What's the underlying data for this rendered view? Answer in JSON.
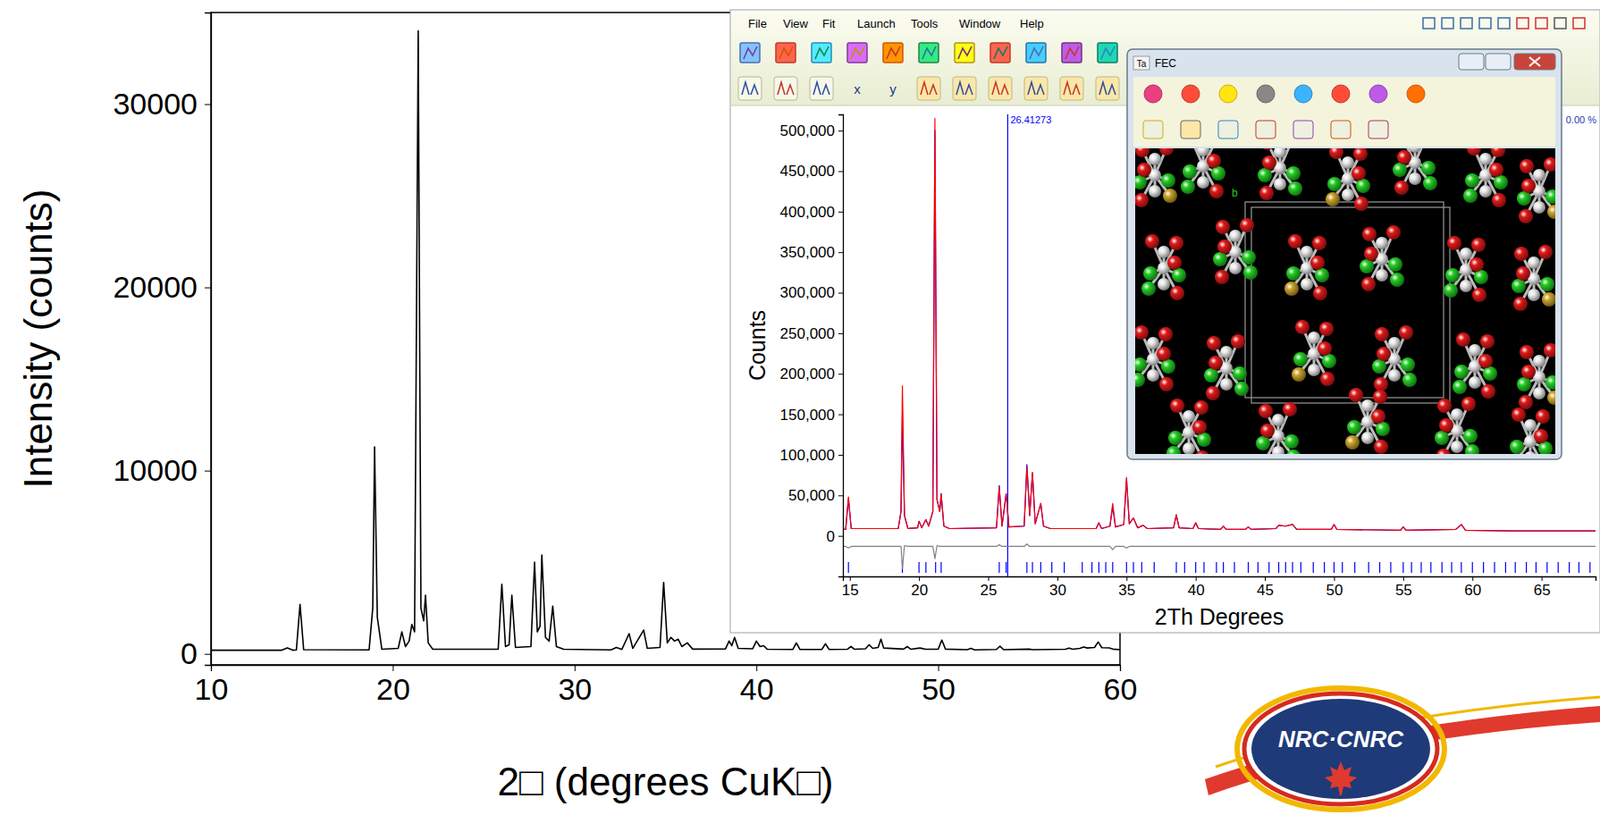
{
  "chart_data": [
    {
      "type": "line",
      "xlabel": "2□ (degrees CuK□)",
      "ylabel": "Intensity (counts)",
      "color": "#000000",
      "grid": false,
      "xlim": [
        10,
        60
      ],
      "ylim": [
        -600,
        35000
      ],
      "xticks": [
        10,
        20,
        30,
        40,
        50,
        60
      ],
      "yticks": [
        0,
        10000,
        20000,
        30000
      ],
      "x": [
        10,
        13.9,
        14.2,
        14.5,
        14.7,
        14.9,
        15.1,
        18.7,
        18.9,
        19.0,
        19.15,
        19.4,
        20.3,
        20.5,
        20.7,
        20.9,
        21.05,
        21.2,
        21.4,
        21.55,
        21.7,
        21.8,
        21.95,
        22.2,
        25.8,
        26.0,
        26.2,
        26.4,
        26.55,
        26.75,
        27.6,
        27.8,
        27.95,
        28.1,
        28.2,
        28.4,
        28.6,
        28.8,
        29.0,
        29.4,
        32.0,
        32.3,
        32.6,
        33.0,
        33.2,
        33.8,
        34.0,
        34.7,
        34.9,
        35.1,
        35.3,
        35.5,
        35.7,
        35.9,
        36.2,
        36.5,
        38.3,
        38.5,
        38.65,
        38.8,
        39.0,
        39.8,
        40.0,
        40.2,
        40.4,
        40.6,
        42.0,
        42.2,
        42.4,
        43.6,
        43.8,
        44.0,
        45.0,
        45.2,
        45.4,
        46.0,
        46.2,
        46.4,
        46.7,
        46.85,
        47.0,
        48.1,
        48.3,
        48.5,
        49.0,
        49.3,
        50.0,
        50.2,
        50.4,
        51.6,
        51.8,
        52.0,
        53.2,
        53.4,
        53.6,
        55.0,
        55.2,
        57.0,
        57.2,
        57.4,
        57.8,
        58.0,
        58.2,
        58.6,
        58.8,
        59.0,
        59.4,
        59.6,
        60
      ],
      "values": [
        200,
        200,
        330,
        200,
        220,
        2700,
        230,
        220,
        2500,
        11300,
        2000,
        250,
        300,
        1200,
        400,
        700,
        1600,
        1200,
        34000,
        2500,
        1800,
        3200,
        600,
        250,
        260,
        3800,
        400,
        500,
        3200,
        350,
        400,
        5000,
        1200,
        1500,
        5400,
        900,
        700,
        2600,
        400,
        250,
        220,
        350,
        240,
        1100,
        300,
        1300,
        300,
        350,
        3900,
        600,
        900,
        700,
        800,
        400,
        600,
        260,
        270,
        700,
        450,
        900,
        300,
        280,
        700,
        400,
        450,
        250,
        240,
        600,
        240,
        240,
        550,
        240,
        250,
        400,
        250,
        280,
        500,
        300,
        350,
        800,
        320,
        260,
        400,
        250,
        320,
        250,
        260,
        750,
        260,
        230,
        300,
        220,
        240,
        420,
        230,
        260,
        230,
        250,
        320,
        250,
        300,
        380,
        320,
        350,
        650,
        340,
        330,
        260,
        230
      ]
    },
    {
      "type": "line",
      "xlabel": "2Th Degrees",
      "ylabel": "Counts",
      "grid": false,
      "xlim": [
        14.5,
        68.9
      ],
      "ylim": [
        -50000,
        520000
      ],
      "xticks": [
        15,
        20,
        25,
        30,
        35,
        40,
        45,
        50,
        55,
        60,
        65
      ],
      "yticks": [
        0,
        {
          "value": 50000,
          "label": "50,000"
        },
        {
          "value": 100000,
          "label": "100,000"
        },
        {
          "value": 150000,
          "label": "150,000"
        },
        {
          "value": 200000,
          "label": "200,000"
        },
        {
          "value": 250000,
          "label": "250,000"
        },
        {
          "value": 300000,
          "label": "300,000"
        },
        {
          "value": 350000,
          "label": "350,000"
        },
        {
          "value": 400000,
          "label": "400,000"
        },
        {
          "value": 450000,
          "label": "450,000"
        },
        {
          "value": 500000,
          "label": "500,000"
        }
      ],
      "x": [
        14.5,
        14.7,
        14.9,
        15.1,
        18.5,
        18.7,
        18.8,
        18.95,
        19.2,
        19.9,
        20.0,
        20.2,
        20.5,
        20.7,
        21.0,
        21.15,
        21.3,
        21.5,
        21.6,
        21.8,
        22.2,
        25.6,
        25.8,
        26.0,
        26.3,
        26.5,
        27.6,
        27.8,
        28.0,
        28.2,
        28.4,
        28.8,
        29.0,
        29.5,
        32.8,
        33.0,
        33.2,
        33.8,
        34.0,
        34.2,
        34.8,
        35.0,
        35.2,
        35.5,
        35.8,
        36.2,
        36.5,
        38.4,
        38.6,
        38.8,
        39.8,
        40.0,
        40.2,
        41.8,
        42.0,
        42.2,
        43.6,
        43.8,
        44.0,
        45.8,
        46.0,
        46.5,
        47.0,
        47.3,
        49.8,
        50.0,
        50.2,
        54.8,
        55.0,
        55.2,
        58.8,
        59.2,
        59.5,
        63,
        66,
        69
      ],
      "series": [
        {
          "color": "#0000ff",
          "values": [
            8000,
            8000,
            46000,
            9000,
            9000,
            30000,
            150000,
            25000,
            9000,
            10000,
            18000,
            10000,
            20000,
            12000,
            30000,
            500000,
            45000,
            30000,
            52000,
            12000,
            9000,
            10000,
            62000,
            12000,
            52000,
            11000,
            12000,
            88000,
            25000,
            78000,
            15000,
            40000,
            12000,
            9000,
            9000,
            16000,
            9000,
            12000,
            36000,
            11000,
            14000,
            70000,
            15000,
            22000,
            10000,
            13000,
            9000,
            10000,
            26000,
            10000,
            9000,
            16000,
            9000,
            8000,
            12000,
            8000,
            8000,
            11000,
            8000,
            9000,
            13000,
            12000,
            14000,
            8000,
            8000,
            14000,
            8000,
            7000,
            11000,
            7000,
            8000,
            14000,
            7000,
            6000,
            6000,
            6000
          ]
        },
        {
          "color": "#ff0000",
          "values": [
            8000,
            8000,
            48000,
            9000,
            9000,
            30000,
            185000,
            25000,
            9000,
            10000,
            18000,
            10000,
            20000,
            12000,
            30000,
            515000,
            45000,
            30000,
            52000,
            12000,
            9000,
            10000,
            60000,
            12000,
            52000,
            11000,
            12000,
            85000,
            25000,
            78000,
            15000,
            40000,
            12000,
            9000,
            9000,
            16000,
            9000,
            12000,
            40000,
            11000,
            14000,
            72000,
            15000,
            22000,
            10000,
            13000,
            9000,
            10000,
            26000,
            10000,
            9000,
            16000,
            9000,
            8000,
            12000,
            8000,
            8000,
            11000,
            8000,
            9000,
            13000,
            12000,
            14000,
            8000,
            8000,
            14000,
            8000,
            7000,
            11000,
            7000,
            8000,
            14000,
            7000,
            6000,
            6000,
            6000
          ]
        },
        {
          "color": "#808080",
          "values": [
            -13000,
            -13000,
            -15000,
            -13000,
            -13000,
            -13000,
            -40000,
            -12000,
            -13000,
            -13000,
            -13000,
            -13000,
            -13000,
            -13000,
            -13000,
            -28000,
            -12000,
            -13000,
            -13000,
            -13000,
            -13000,
            -13000,
            -11000,
            -13000,
            -13000,
            -13000,
            -13000,
            -10000,
            -13000,
            -13000,
            -13000,
            -13000,
            -13000,
            -13000,
            -13000,
            -13000,
            -13000,
            -13000,
            -17000,
            -13000,
            -13000,
            -15000,
            -13000,
            -13000,
            -13000,
            -13000,
            -13000,
            -13000,
            -13000,
            -13000,
            -13000,
            -13000,
            -13000,
            -13000,
            -13000,
            -13000,
            -13000,
            -13000,
            -13000,
            -13000,
            -13000,
            -13000,
            -13000,
            -13000,
            -13000,
            -13000,
            -13000,
            -13000,
            -13000,
            -13000,
            -13000,
            -13000,
            -13000,
            -13000,
            -13000,
            -13000
          ]
        }
      ],
      "reflections": {
        "color": "#0000ff",
        "marker": "tick",
        "x": [
          14.9,
          18.8,
          20.0,
          20.5,
          21.2,
          21.6,
          25.8,
          26.3,
          27.8,
          28.2,
          28.8,
          29.6,
          30.5,
          31.8,
          32.5,
          33.0,
          33.5,
          34.0,
          35.0,
          35.5,
          36.1,
          37.0,
          38.6,
          39.2,
          40.0,
          40.6,
          41.5,
          42.0,
          42.8,
          43.8,
          44.5,
          45.3,
          46.0,
          46.5,
          47.0,
          47.6,
          48.5,
          49.3,
          50.0,
          50.6,
          51.5,
          52.5,
          53.3,
          54.1,
          55.0,
          55.6,
          56.3,
          57.0,
          57.8,
          58.5,
          59.2,
          60.0,
          60.8,
          61.6,
          62.4,
          63.1,
          63.9,
          64.6,
          65.4,
          66.2,
          67.0,
          67.7,
          68.5
        ]
      },
      "annotations": [
        {
          "x": 26.41273,
          "text": "26.41273",
          "color": "#0000ff"
        }
      ]
    }
  ],
  "screenshot": {
    "menu": [
      "File",
      "View",
      "Fit",
      "Launch",
      "Tools",
      "Window",
      "Help"
    ],
    "toolbar_labels": [
      "x",
      "y"
    ],
    "corner_text": "0.00 %",
    "structure_window": {
      "icon": "Ta",
      "title": "FEC",
      "axis_label": "b"
    }
  },
  "logo": {
    "text": "NRC·CNRC"
  }
}
